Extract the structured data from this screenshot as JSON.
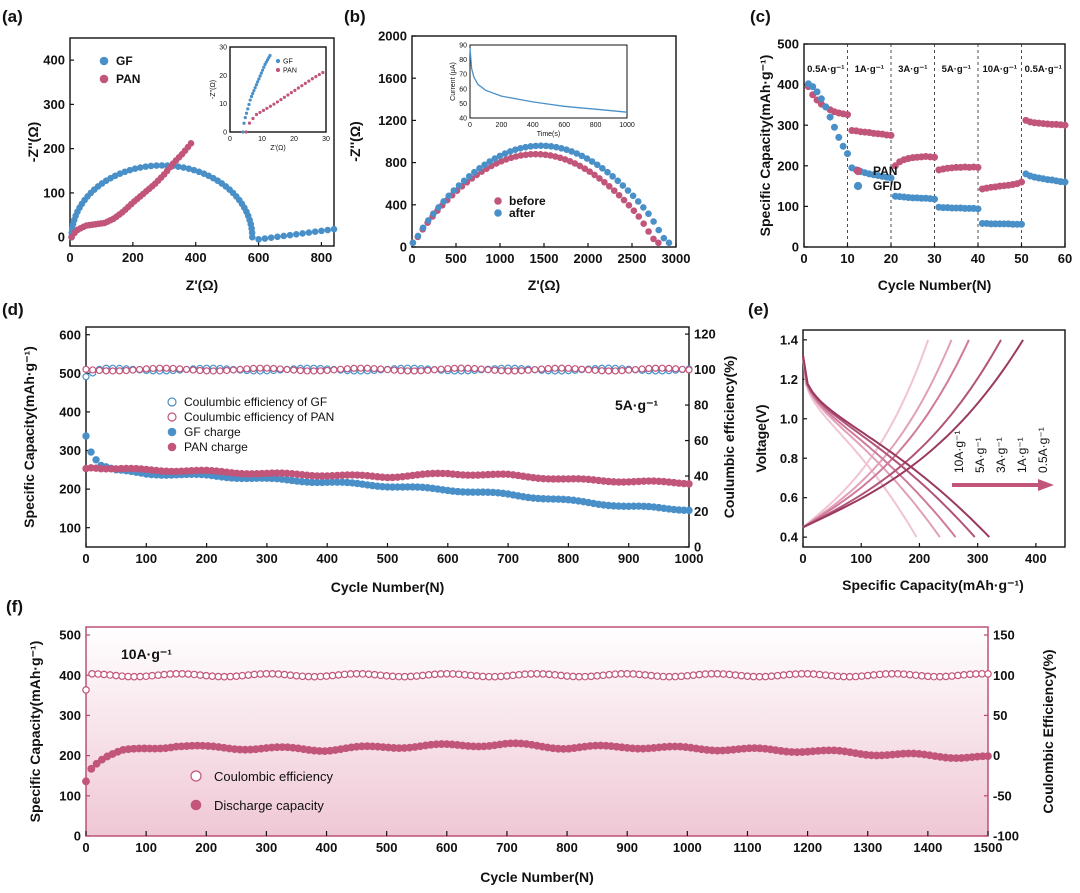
{
  "colors": {
    "blue": "#4a90c8",
    "pink": "#c2557a",
    "axis": "#111111",
    "panel_f_axis": "#b8466e"
  },
  "chart_data": [
    {
      "id": "a",
      "panel_label": "(a)",
      "type": "scatter",
      "xlabel": "Z'(Ω)",
      "ylabel": "-Z''(Ω)",
      "xlim": [
        0,
        840
      ],
      "ylim": [
        -20,
        450
      ],
      "xticks": [
        0,
        200,
        400,
        600,
        800
      ],
      "yticks": [
        0,
        100,
        200,
        300,
        400
      ],
      "xtick_labels": [
        "0",
        "200",
        "400",
        "600",
        "800"
      ],
      "ytick_labels": [
        "0",
        "100",
        "200",
        "300",
        "400"
      ],
      "series": [
        {
          "name": "GF",
          "color": "#4a90c8",
          "shape": "semicircle",
          "start": 5,
          "end": 580,
          "peak": 162,
          "tail": [
            [
              600,
              -5
            ],
            [
              840,
              18
            ]
          ]
        },
        {
          "name": "PAN",
          "color": "#c2557a",
          "points": [
            [
              5,
              0
            ],
            [
              20,
              15
            ],
            [
              50,
              26
            ],
            [
              80,
              29
            ],
            [
              110,
              32
            ],
            [
              140,
              42
            ],
            [
              170,
              58
            ],
            [
              200,
              78
            ],
            [
              240,
              102
            ],
            [
              270,
              120
            ],
            [
              300,
              142
            ],
            [
              330,
              168
            ],
            [
              360,
              190
            ],
            [
              385,
              212
            ]
          ]
        }
      ],
      "legend": [
        "GF",
        "PAN"
      ],
      "inset": {
        "xlabel": "Z'(Ω)",
        "ylabel": "-Z''(Ω)",
        "xlim": [
          0,
          30
        ],
        "ylim": [
          0,
          30
        ],
        "xticks": [
          0,
          10,
          20,
          30
        ],
        "yticks": [
          0,
          10,
          20,
          30
        ],
        "xtick_labels": [
          "0",
          "10",
          "20",
          "30"
        ],
        "ytick_labels": [
          "0",
          "10",
          "20",
          "30"
        ],
        "legend": [
          "GF",
          "PAN"
        ],
        "series": [
          {
            "name": "GF",
            "color": "#4a90c8",
            "points": [
              [
                4,
                0
              ],
              [
                4.5,
                4
              ],
              [
                5.5,
                8
              ],
              [
                6.5,
                12
              ],
              [
                8,
                16
              ],
              [
                9.5,
                20
              ],
              [
                11,
                24
              ],
              [
                12.5,
                27
              ]
            ]
          },
          {
            "name": "PAN",
            "color": "#c2557a",
            "points": [
              [
                5,
                0
              ],
              [
                6,
                3
              ],
              [
                8,
                6
              ],
              [
                11,
                8
              ],
              [
                14,
                10
              ],
              [
                18,
                13
              ],
              [
                22,
                16
              ],
              [
                26,
                19
              ],
              [
                29,
                21
              ]
            ]
          }
        ]
      }
    },
    {
      "id": "b",
      "panel_label": "(b)",
      "type": "scatter",
      "xlabel": "Z'(Ω)",
      "ylabel": "-Z''(Ω)",
      "xlim": [
        0,
        3000
      ],
      "ylim": [
        0,
        2000
      ],
      "xticks": [
        0,
        500,
        1000,
        1500,
        2000,
        2500,
        3000
      ],
      "yticks": [
        0,
        400,
        800,
        1200,
        1600,
        2000
      ],
      "xtick_labels": [
        "0",
        "500",
        "1000",
        "1500",
        "2000",
        "2500",
        "3000"
      ],
      "ytick_labels": [
        "0",
        "400",
        "800",
        "1200",
        "1600",
        "2000"
      ],
      "series": [
        {
          "name": "before",
          "color": "#c2557a",
          "shape": "arc",
          "start": 10,
          "end": 2800,
          "peak": 880
        },
        {
          "name": "after",
          "color": "#4a90c8",
          "shape": "arc",
          "start": 10,
          "end": 2920,
          "peak": 960
        }
      ],
      "legend": [
        "before",
        "after"
      ],
      "inset": {
        "xlabel": "Time(s)",
        "ylabel": "Current (μA)",
        "xlim": [
          0,
          1000
        ],
        "ylim": [
          40,
          90
        ],
        "xticks": [
          0,
          200,
          400,
          600,
          800,
          1000
        ],
        "yticks": [
          40,
          50,
          60,
          70,
          80,
          90
        ],
        "xtick_labels": [
          "0",
          "200",
          "400",
          "600",
          "800",
          "1000"
        ],
        "ytick_labels": [
          "40",
          "50",
          "60",
          "70",
          "80",
          "90"
        ],
        "series": [
          {
            "name": "current",
            "color": "#4a90c8",
            "points": [
              [
                0,
                88
              ],
              [
                10,
                74
              ],
              [
                25,
                68
              ],
              [
                50,
                63
              ],
              [
                100,
                59
              ],
              [
                200,
                55
              ],
              [
                300,
                53
              ],
              [
                400,
                51
              ],
              [
                500,
                49.5
              ],
              [
                600,
                48
              ],
              [
                700,
                47
              ],
              [
                800,
                46
              ],
              [
                900,
                45
              ],
              [
                1000,
                44
              ]
            ]
          }
        ]
      }
    },
    {
      "id": "c",
      "panel_label": "(c)",
      "type": "scatter",
      "xlabel": "Cycle Number(N)",
      "ylabel": "Specific Capacity(mAh·g⁻¹)",
      "xlim": [
        0,
        60
      ],
      "ylim": [
        0,
        500
      ],
      "xticks": [
        0,
        10,
        20,
        30,
        40,
        50,
        60
      ],
      "yticks": [
        0,
        100,
        200,
        300,
        400,
        500
      ],
      "xtick_labels": [
        "0",
        "10",
        "20",
        "30",
        "40",
        "50",
        "60"
      ],
      "ytick_labels": [
        "0",
        "100",
        "200",
        "300",
        "400",
        "500"
      ],
      "rate_labels": [
        "0.5A·g⁻¹",
        "1A·g⁻¹",
        "3A·g⁻¹",
        "5A·g⁻¹",
        "10A·g⁻¹",
        "0.5A·g⁻¹"
      ],
      "dividers": [
        10,
        20,
        30,
        40,
        50
      ],
      "legend": [
        "PAN",
        "GF/D"
      ],
      "series": [
        {
          "name": "PAN",
          "color": "#c2557a",
          "y": [
            395,
            375,
            362,
            352,
            345,
            338,
            333,
            330,
            328,
            326,
            287,
            286,
            284,
            283,
            282,
            280,
            279,
            278,
            276,
            275,
            200,
            210,
            215,
            218,
            220,
            221,
            222,
            223,
            222,
            221,
            190,
            192,
            194,
            195,
            196,
            196,
            197,
            196,
            197,
            196,
            143,
            145,
            147,
            148,
            150,
            151,
            152,
            154,
            156,
            160,
            312,
            308,
            306,
            305,
            304,
            303,
            302,
            302,
            301,
            300
          ]
        },
        {
          "name": "GF/D",
          "color": "#4a90c8",
          "y": [
            402,
            395,
            382,
            365,
            345,
            320,
            295,
            270,
            248,
            230,
            195,
            190,
            186,
            183,
            180,
            178,
            176,
            174,
            172,
            170,
            125,
            124,
            123,
            122,
            121,
            121,
            120,
            120,
            119,
            118,
            98,
            97,
            97,
            96,
            96,
            96,
            95,
            95,
            95,
            94,
            58,
            58,
            57,
            57,
            57,
            57,
            57,
            56,
            56,
            56,
            180,
            175,
            172,
            170,
            168,
            166,
            165,
            163,
            161,
            160
          ]
        }
      ]
    },
    {
      "id": "d",
      "panel_label": "(d)",
      "type": "scatter",
      "xlabel": "Cycle Number(N)",
      "ylabel": "Specific Capacity(mAh·g⁻¹)",
      "y2label": "Coulumbic efficiency(%)",
      "xlim": [
        0,
        1000
      ],
      "ylim": [
        50,
        620
      ],
      "y2lim": [
        0,
        124
      ],
      "xticks": [
        0,
        100,
        200,
        300,
        400,
        500,
        600,
        700,
        800,
        900,
        1000
      ],
      "yticks": [
        100,
        200,
        300,
        400,
        500,
        600
      ],
      "y2ticks": [
        0,
        20,
        40,
        60,
        80,
        100,
        120
      ],
      "xtick_labels": [
        "0",
        "100",
        "200",
        "300",
        "400",
        "500",
        "600",
        "700",
        "800",
        "900",
        "1000"
      ],
      "ytick_labels": [
        "100",
        "200",
        "300",
        "400",
        "500",
        "600"
      ],
      "y2tick_labels": [
        "0",
        "20",
        "40",
        "60",
        "80",
        "100",
        "120"
      ],
      "annotation": "5A·g⁻¹",
      "legend": [
        "Coulumbic efficiency of GF",
        "Coulumbic efficiency of PAN",
        "GF charge",
        "PAN charge"
      ],
      "series": [
        {
          "name": "Coulumbic efficiency of GF",
          "axis": "y2",
          "color": "#4a90c8",
          "x": [
            0,
            25,
            50,
            100,
            200,
            300,
            400,
            500,
            600,
            700,
            800,
            900,
            1000
          ],
          "y": [
            96,
            100,
            100,
            100,
            100,
            100,
            100,
            100,
            100,
            100,
            100,
            100,
            100
          ]
        },
        {
          "name": "Coulumbic efficiency of PAN",
          "axis": "y2",
          "color": "#c2557a",
          "x": [
            0,
            25,
            50,
            100,
            200,
            300,
            400,
            500,
            600,
            700,
            800,
            900,
            1000
          ],
          "y": [
            100,
            100,
            100,
            100,
            100,
            100,
            100,
            100,
            100,
            100,
            100,
            100,
            100
          ]
        },
        {
          "name": "GF charge",
          "axis": "y",
          "color": "#4a90c8",
          "x": [
            0,
            10,
            25,
            50,
            100,
            200,
            300,
            400,
            500,
            600,
            700,
            800,
            900,
            1000
          ],
          "y": [
            340,
            290,
            262,
            248,
            240,
            235,
            226,
            218,
            208,
            198,
            186,
            170,
            155,
            147
          ]
        },
        {
          "name": "PAN charge",
          "axis": "y",
          "color": "#c2557a",
          "x": [
            0,
            10,
            25,
            50,
            100,
            200,
            300,
            400,
            500,
            600,
            700,
            800,
            900,
            1000
          ],
          "y": [
            255,
            258,
            255,
            252,
            250,
            246,
            240,
            236,
            232,
            240,
            236,
            225,
            220,
            216
          ]
        }
      ]
    },
    {
      "id": "e",
      "panel_label": "(e)",
      "type": "line",
      "xlabel": "Specific Capacity(mAh·g⁻¹)",
      "ylabel": "Voltage(V)",
      "xlim": [
        0,
        450
      ],
      "ylim": [
        0.35,
        1.45
      ],
      "xticks": [
        0,
        100,
        200,
        300,
        400
      ],
      "yticks": [
        0.4,
        0.6,
        0.8,
        1.0,
        1.2,
        1.4
      ],
      "xtick_labels": [
        "0",
        "100",
        "200",
        "300",
        "400"
      ],
      "ytick_labels": [
        "0.4",
        "0.6",
        "0.8",
        "1.0",
        "1.2",
        "1.4"
      ],
      "rate_labels": [
        "10A·g⁻¹",
        "5A·g⁻¹",
        "3A·g⁻¹",
        "1A·g⁻¹",
        "0.5A·g⁻¹"
      ],
      "series": [
        {
          "name": "10A·g⁻¹",
          "color": "#f0c4d2",
          "charge_cap": 215,
          "discharge_cap": 195
        },
        {
          "name": "5A·g⁻¹",
          "color": "#e2a0b8",
          "charge_cap": 255,
          "discharge_cap": 235
        },
        {
          "name": "3A·g⁻¹",
          "color": "#d07b9c",
          "charge_cap": 285,
          "discharge_cap": 262
        },
        {
          "name": "1A·g⁻¹",
          "color": "#b25479",
          "charge_cap": 340,
          "discharge_cap": 295
        },
        {
          "name": "0.5A·g⁻¹",
          "color": "#9a3a60",
          "charge_cap": 378,
          "discharge_cap": 320
        }
      ]
    },
    {
      "id": "f",
      "panel_label": "(f)",
      "type": "scatter",
      "xlabel": "Cycle Number(N)",
      "ylabel": "Specific Capacity(mAh·g⁻¹)",
      "y2label": "Coulombic Efficiency(%)",
      "xlim": [
        0,
        1500
      ],
      "ylim": [
        0,
        520
      ],
      "y2lim": [
        -100,
        160
      ],
      "xticks": [
        0,
        100,
        200,
        300,
        400,
        500,
        600,
        700,
        800,
        900,
        1000,
        1100,
        1200,
        1300,
        1400,
        1500
      ],
      "yticks": [
        0,
        100,
        200,
        300,
        400,
        500
      ],
      "y2ticks": [
        -100,
        -50,
        0,
        50,
        100,
        150
      ],
      "xtick_labels": [
        "0",
        "100",
        "200",
        "300",
        "400",
        "500",
        "600",
        "700",
        "800",
        "900",
        "1000",
        "1100",
        "1200",
        "1300",
        "1400",
        "1500"
      ],
      "ytick_labels": [
        "0",
        "100",
        "200",
        "300",
        "400",
        "500"
      ],
      "y2tick_labels": [
        "-100",
        "-50",
        "0",
        "50",
        "100",
        "150"
      ],
      "annotation": "10A·g⁻¹",
      "legend": [
        "Coulombic efficiency",
        "Discharge capacity"
      ],
      "series": [
        {
          "name": "Coulombic efficiency",
          "axis": "y2",
          "color": "#c2557a",
          "x": [
            0,
            10,
            50,
            100,
            300,
            600,
            900,
            1200,
            1500
          ],
          "y": [
            80,
            100,
            100,
            100,
            100,
            100,
            100,
            100,
            100
          ]
        },
        {
          "name": "Discharge capacity",
          "axis": "y",
          "color": "#c2557a",
          "x": [
            0,
            10,
            30,
            60,
            100,
            150,
            200,
            300,
            400,
            500,
            600,
            700,
            800,
            900,
            1000,
            1100,
            1200,
            1300,
            1400,
            1500
          ],
          "y": [
            140,
            175,
            195,
            210,
            218,
            225,
            220,
            218,
            215,
            222,
            225,
            228,
            220,
            222,
            218,
            215,
            212,
            205,
            200,
            195
          ]
        }
      ]
    }
  ]
}
